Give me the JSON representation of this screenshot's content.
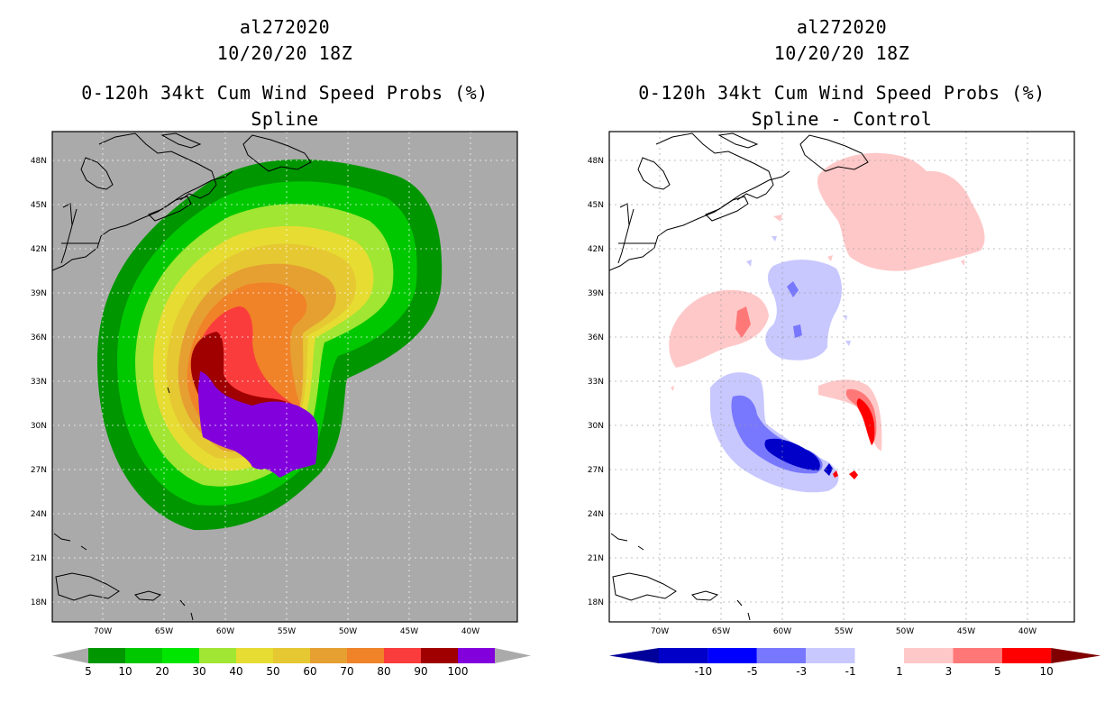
{
  "left_panel": {
    "title_line1": "al272020",
    "title_line2": "10/20/20 18Z",
    "title_line3": "0-120h 34kt Cum Wind Speed Probs (%)",
    "title_line4": "Spline",
    "background_color": "#aaaaaa",
    "colorbar": {
      "labels": [
        "5",
        "10",
        "20",
        "30",
        "40",
        "50",
        "60",
        "70",
        "80",
        "90",
        "100"
      ],
      "colors": [
        "#009600",
        "#00c800",
        "#00e600",
        "#a0e632",
        "#e6dc32",
        "#e6c832",
        "#e6a032",
        "#f08228",
        "#fa3c3c",
        "#a00000",
        "#8200dc"
      ],
      "end_color": "#aaaaaa"
    },
    "probability_contours": [
      {
        "level": "5",
        "color": "#009600"
      },
      {
        "level": "10",
        "color": "#00c800"
      },
      {
        "level": "20",
        "color": "#a0e632"
      },
      {
        "level": "30",
        "color": "#e6dc32"
      },
      {
        "level": "40",
        "color": "#e6c832"
      },
      {
        "level": "50",
        "color": "#e6a032"
      },
      {
        "level": "60",
        "color": "#f08228"
      },
      {
        "level": "70",
        "color": "#fa3c3c"
      },
      {
        "level": "90",
        "color": "#a00000"
      },
      {
        "level": "100",
        "color": "#8200dc"
      }
    ]
  },
  "right_panel": {
    "title_line1": "al272020",
    "title_line2": "10/20/20 18Z",
    "title_line3": "0-120h 34kt Cum Wind Speed Probs (%)",
    "title_line4": "Spline - Control",
    "background_color": "#ffffff",
    "colorbar": {
      "labels": [
        "-10",
        "-5",
        "-3",
        "-1",
        "1",
        "3",
        "5",
        "10"
      ],
      "colors": [
        "#0000c8",
        "#0000ff",
        "#7878ff",
        "#c8c8ff",
        "#ffffff",
        "#ffc8c8",
        "#ff7878",
        "#ff0000"
      ],
      "low_end_color": "#00009a",
      "high_end_color": "#800000"
    },
    "difference_areas": [
      {
        "name": "northeast-positive",
        "color": "#ffc8c8"
      },
      {
        "name": "central-negative",
        "color": "#c8c8ff"
      },
      {
        "name": "west-positive",
        "color": "#ffc8c8"
      },
      {
        "name": "east-positive",
        "color": "#ffc8c8"
      },
      {
        "name": "southwest-negative",
        "color": "#c8c8ff"
      }
    ]
  },
  "axes": {
    "lon_labels": [
      "70W",
      "65W",
      "60W",
      "55W",
      "50W",
      "45W",
      "40W"
    ],
    "lat_labels": [
      "48N",
      "45N",
      "42N",
      "39N",
      "36N",
      "33N",
      "30N",
      "27N",
      "24N",
      "21N",
      "18N"
    ]
  }
}
